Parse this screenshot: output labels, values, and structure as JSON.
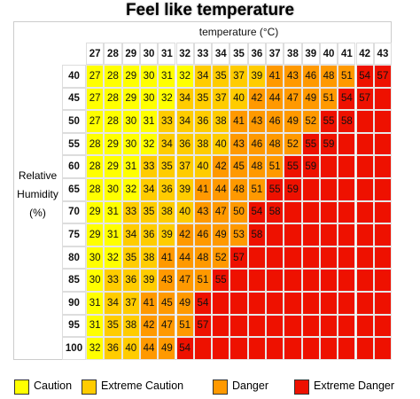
{
  "title": "Feel like temperature",
  "x_label": "temperature (°C)",
  "y_label": [
    "Relative",
    "Humidity",
    "(%)"
  ],
  "columns": [
    27,
    28,
    29,
    30,
    31,
    32,
    33,
    34,
    35,
    36,
    37,
    38,
    39,
    40,
    41,
    42,
    43
  ],
  "rows": [
    {
      "humidity": 40,
      "values": [
        27,
        28,
        29,
        30,
        31,
        32,
        34,
        35,
        37,
        39,
        41,
        43,
        46,
        48,
        51,
        54,
        57
      ]
    },
    {
      "humidity": 45,
      "values": [
        27,
        28,
        29,
        30,
        32,
        34,
        35,
        37,
        40,
        42,
        44,
        47,
        49,
        51,
        54,
        57
      ]
    },
    {
      "humidity": 50,
      "values": [
        27,
        28,
        30,
        31,
        33,
        34,
        36,
        38,
        41,
        43,
        46,
        49,
        52,
        55,
        58
      ]
    },
    {
      "humidity": 55,
      "values": [
        28,
        29,
        30,
        32,
        34,
        36,
        38,
        40,
        43,
        46,
        48,
        52,
        55,
        59
      ]
    },
    {
      "humidity": 60,
      "values": [
        28,
        29,
        31,
        33,
        35,
        37,
        40,
        42,
        45,
        48,
        51,
        55,
        59
      ]
    },
    {
      "humidity": 65,
      "values": [
        28,
        30,
        32,
        34,
        36,
        39,
        41,
        44,
        48,
        51,
        55,
        59
      ]
    },
    {
      "humidity": 70,
      "values": [
        29,
        31,
        33,
        35,
        38,
        40,
        43,
        47,
        50,
        54,
        58
      ]
    },
    {
      "humidity": 75,
      "values": [
        29,
        31,
        34,
        36,
        39,
        42,
        46,
        49,
        53,
        58
      ]
    },
    {
      "humidity": 80,
      "values": [
        30,
        32,
        35,
        38,
        41,
        44,
        48,
        52,
        57
      ]
    },
    {
      "humidity": 85,
      "values": [
        30,
        33,
        36,
        39,
        43,
        47,
        51,
        55
      ]
    },
    {
      "humidity": 90,
      "values": [
        31,
        34,
        37,
        41,
        45,
        49,
        54
      ]
    },
    {
      "humidity": 95,
      "values": [
        31,
        35,
        38,
        42,
        47,
        51,
        57
      ]
    },
    {
      "humidity": 100,
      "values": [
        32,
        36,
        40,
        44,
        49,
        54
      ]
    }
  ],
  "legend": [
    {
      "label": "Caution",
      "color": "#ffff00"
    },
    {
      "label": "Extreme Caution",
      "color": "#ffcc00"
    },
    {
      "label": "Danger",
      "color": "#ff9900"
    },
    {
      "label": "Extreme Danger",
      "color": "#ee1100"
    }
  ]
}
